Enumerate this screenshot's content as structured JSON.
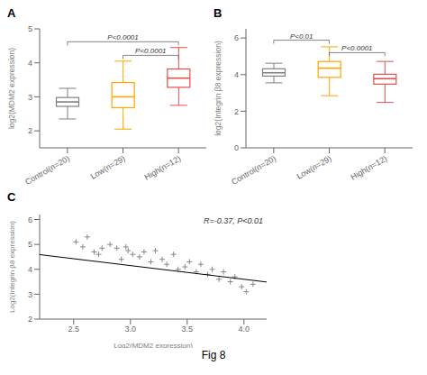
{
  "title": "Fig 8",
  "chart_data": [
    {
      "type": "box",
      "title": "A",
      "ylabel": "log2(MDM2 expression)",
      "categories": [
        "Control(n=20)",
        "Low(n=29)",
        "High(n=12)"
      ],
      "colors": [
        "#808080",
        "#FFA500",
        "#E05050"
      ],
      "boxes": [
        {
          "median": 2.85,
          "q1": 2.72,
          "q3": 2.98,
          "whislo": 2.35,
          "whishi": 3.25
        },
        {
          "median": 3.0,
          "q1": 2.68,
          "q3": 3.42,
          "whislo": 2.05,
          "whishi": 4.05
        },
        {
          "median": 3.55,
          "q1": 3.28,
          "q3": 3.82,
          "whislo": 2.75,
          "whishi": 4.45
        }
      ],
      "ylim": [
        1.5,
        5.0
      ],
      "yticks": [
        2,
        3,
        4,
        5
      ],
      "annotations": [
        {
          "from": "Control(n=20)",
          "to": "High(n=12)",
          "y": 4.62,
          "text": "P<0.0001"
        },
        {
          "from": "Low(n=29)",
          "to": "High(n=12)",
          "y": 4.22,
          "text": "P<0.0001"
        }
      ]
    },
    {
      "type": "box",
      "title": "B",
      "ylabel": "log2(Integrin β8 expression)",
      "categories": [
        "Control(n=20)",
        "Low(n=29)",
        "High(n=12)"
      ],
      "colors": [
        "#808080",
        "#FFA500",
        "#E05050"
      ],
      "boxes": [
        {
          "median": 4.1,
          "q1": 3.92,
          "q3": 4.32,
          "whislo": 3.55,
          "whishi": 4.62
        },
        {
          "median": 4.35,
          "q1": 3.85,
          "q3": 4.72,
          "whislo": 2.85,
          "whishi": 5.52
        },
        {
          "median": 3.78,
          "q1": 3.48,
          "q3": 4.02,
          "whislo": 2.48,
          "whishi": 4.72
        }
      ],
      "ylim": [
        0,
        6.5
      ],
      "yticks": [
        0,
        2,
        4,
        6
      ],
      "annotations": [
        {
          "from": "Control(n=20)",
          "to": "Low(n=29)",
          "y": 5.88,
          "text": "P<0.01"
        },
        {
          "from": "Low(n=29)",
          "to": "High(n=12)",
          "y": 5.2,
          "text": "P<0.0001"
        }
      ]
    },
    {
      "type": "scatter",
      "title": "C",
      "xlabel": "Log2(MDM2 expression)",
      "ylabel": "Log2(Integrin β8 expression)",
      "annotation": "R=-0.37, P<0.01",
      "x": [
        2.52,
        2.58,
        2.62,
        2.68,
        2.72,
        2.75,
        2.82,
        2.88,
        2.92,
        2.96,
        2.98,
        3.02,
        3.08,
        3.12,
        3.18,
        3.22,
        3.28,
        3.32,
        3.38,
        3.42,
        3.48,
        3.52,
        3.58,
        3.62,
        3.68,
        3.72,
        3.78,
        3.82,
        3.88,
        3.92,
        3.98,
        4.02,
        4.08
      ],
      "y": [
        5.1,
        4.9,
        5.3,
        4.7,
        4.6,
        4.85,
        5.0,
        4.85,
        4.4,
        4.9,
        4.75,
        4.6,
        4.5,
        4.7,
        4.3,
        4.75,
        4.4,
        4.2,
        4.6,
        4.0,
        4.1,
        4.3,
        3.9,
        4.2,
        3.8,
        4.0,
        3.6,
        3.9,
        3.5,
        3.7,
        3.3,
        3.1,
        3.4
      ],
      "color": "#888888",
      "marker": "plus",
      "trend_line": {
        "x": [
          2.2,
          4.2
        ],
        "y": [
          4.59,
          3.49
        ],
        "color": "#000000"
      },
      "xlim": [
        2.2,
        4.2
      ],
      "ylim": [
        2.0,
        6.2
      ],
      "xticks": [
        2.5,
        {
          "value": 3.0,
          "label": "3.0"
        },
        3.5,
        {
          "value": 4.0,
          "label": "4.0"
        }
      ],
      "yticks": [
        2,
        3,
        4,
        5,
        6
      ]
    }
  ]
}
